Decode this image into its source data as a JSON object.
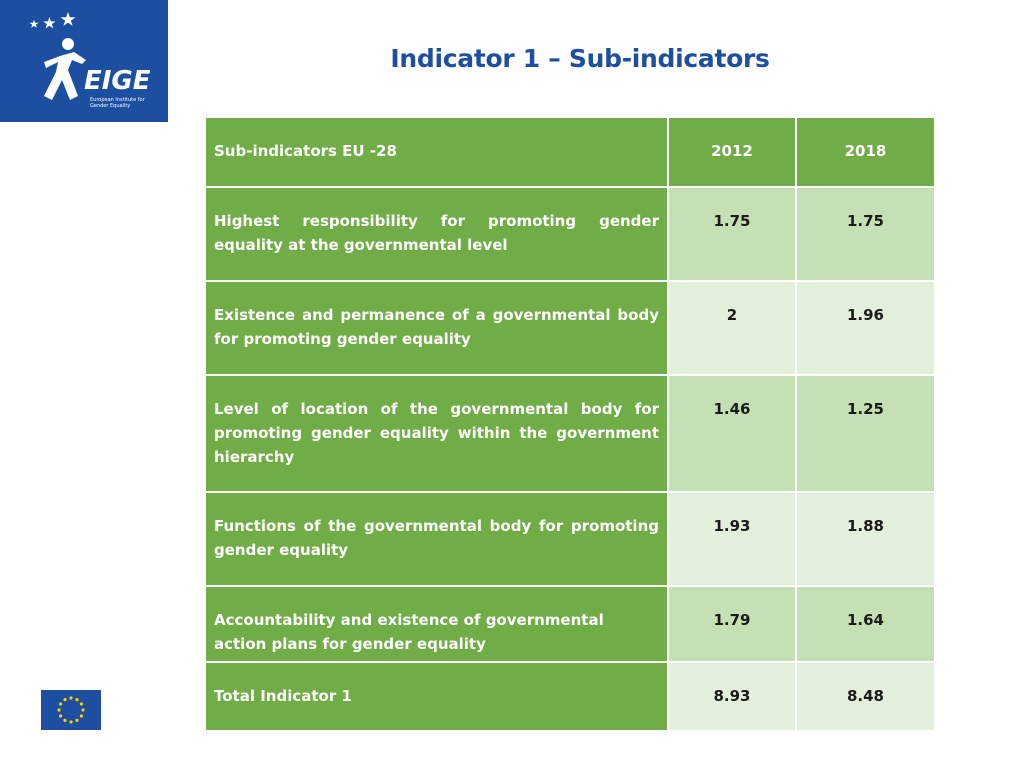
{
  "logo": {
    "name": "EIGE",
    "subtitle": "European Institute for Gender Equality"
  },
  "title": "Indicator 1 – Sub-indicators",
  "table": {
    "headers": [
      "Sub-indicators EU -28",
      "2012",
      "2018"
    ],
    "rows": [
      {
        "label": "Highest responsibility for promoting gender equality at the governmental level",
        "v2012": "1.75",
        "v2018": "1.75"
      },
      {
        "label": "Existence and permanence of a governmental body for promoting gender equality",
        "v2012": "2",
        "v2018": "1.96"
      },
      {
        "label": "Level of location of the governmental body for promoting gender equality within the government hierarchy",
        "v2012": "1.46",
        "v2018": "1.25"
      },
      {
        "label": "Functions of the governmental body for promoting gender equality",
        "v2012": "1.93",
        "v2018": "1.88"
      },
      {
        "label": "Accountability and existence of governmental action plans for gender equality",
        "v2012": "1.79",
        "v2018": "1.64"
      }
    ],
    "total": {
      "label": "Total Indicator 1",
      "v2012": "8.93",
      "v2018": "8.48"
    }
  },
  "colors": {
    "brand_blue": "#1d4fa0",
    "header_green": "#70ad47",
    "cell_dark": "#c5e0b4",
    "cell_light": "#e2efda"
  },
  "icons": [
    "eige-logo",
    "eu-flag-icon"
  ]
}
